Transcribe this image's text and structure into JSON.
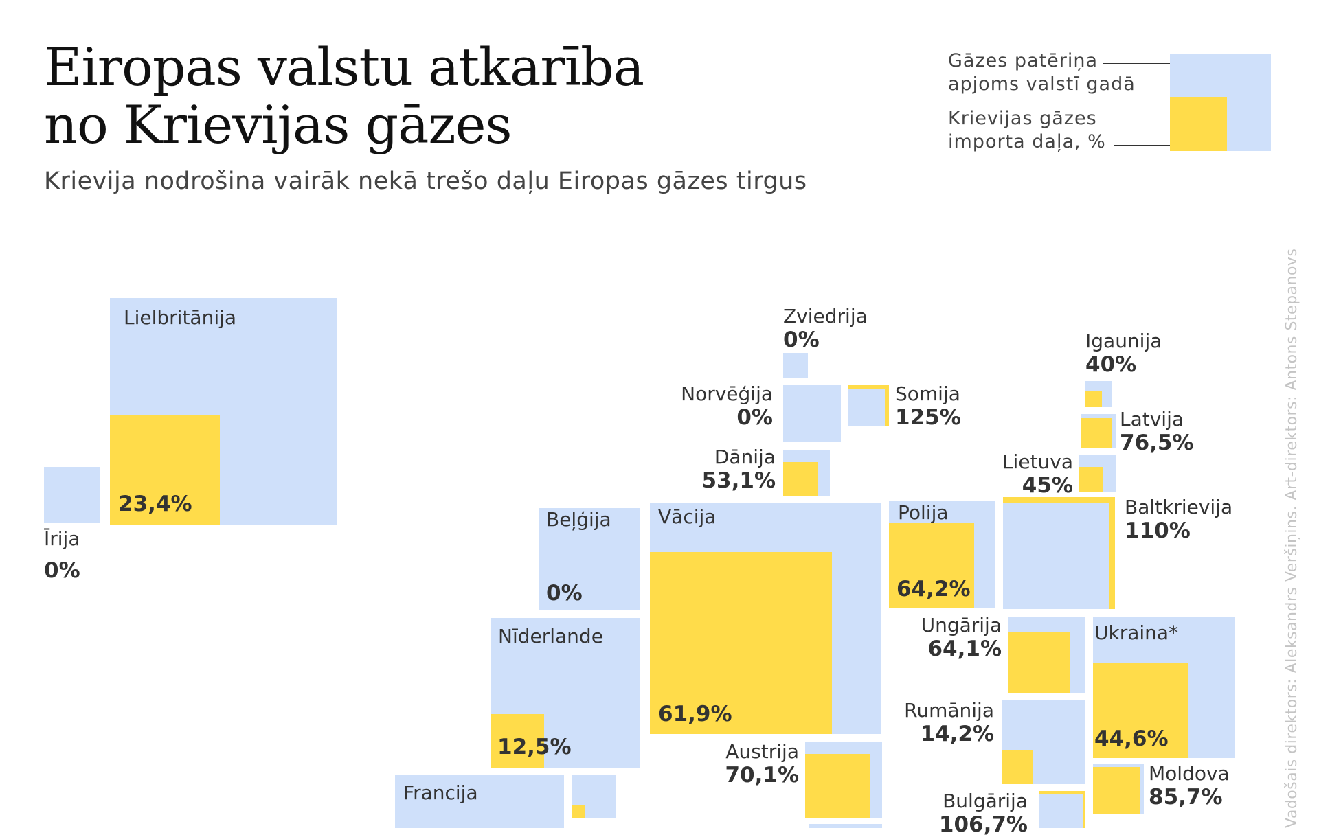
{
  "header": {
    "title_line1": "Eiropas valstu atkarība",
    "title_line2": "no Krievijas gāzes",
    "subtitle": "Krievija nodrošina vairāk nekā trešo daļu Eiropas gāzes tirgus"
  },
  "legend": {
    "consumption_line1": "Gāzes patēriņa",
    "consumption_line2": "apjoms valstī gadā",
    "import_line1": "Krievijas gāzes",
    "import_line2": "importa daļa, %"
  },
  "credits": "Vadošais direktors: Aleksandrs Veršiņins. Art-direktors: Antons Stepanovs",
  "colors": {
    "consumption": "#cfe0fa",
    "russian_import": "#ffdc4a",
    "text": "#333333"
  },
  "chart_data": {
    "type": "proportional-square map",
    "countries": [
      {
        "name": "Lielbritānija",
        "label": "23,4%",
        "russian_share_pct": 23.4
      },
      {
        "name": "Īrija",
        "label": "0%",
        "russian_share_pct": 0
      },
      {
        "name": "Zviedrija",
        "label": "0%",
        "russian_share_pct": 0
      },
      {
        "name": "Norvēģija",
        "label": "0%",
        "russian_share_pct": 0
      },
      {
        "name": "Somija",
        "label": "125%",
        "russian_share_pct": 125
      },
      {
        "name": "Igaunija",
        "label": "40%",
        "russian_share_pct": 40
      },
      {
        "name": "Latvija",
        "label": "76,5%",
        "russian_share_pct": 76.5
      },
      {
        "name": "Lietuva",
        "label": "45%",
        "russian_share_pct": 45
      },
      {
        "name": "Dānija",
        "label": "53,1%",
        "russian_share_pct": 53.1
      },
      {
        "name": "Beļģija",
        "label": "0%",
        "russian_share_pct": 0
      },
      {
        "name": "Vācija",
        "label": "61,9%",
        "russian_share_pct": 61.9
      },
      {
        "name": "Polija",
        "label": "64,2%",
        "russian_share_pct": 64.2
      },
      {
        "name": "Baltkrievija",
        "label": "110%",
        "russian_share_pct": 110
      },
      {
        "name": "Nīderlande",
        "label": "12,5%",
        "russian_share_pct": 12.5
      },
      {
        "name": "Ungārija",
        "label": "64,1%",
        "russian_share_pct": 64.1
      },
      {
        "name": "Ukraina*",
        "label": "44,6%",
        "russian_share_pct": 44.6
      },
      {
        "name": "Rumānija",
        "label": "14,2%",
        "russian_share_pct": 14.2
      },
      {
        "name": "Austrija",
        "label": "70,1%",
        "russian_share_pct": 70.1
      },
      {
        "name": "Moldova",
        "label": "85,7%",
        "russian_share_pct": 85.7
      },
      {
        "name": "Francija",
        "label": "",
        "russian_share_pct": null
      },
      {
        "name": "Bulgārija",
        "label": "106,7%",
        "russian_share_pct": 106.7
      }
    ]
  }
}
